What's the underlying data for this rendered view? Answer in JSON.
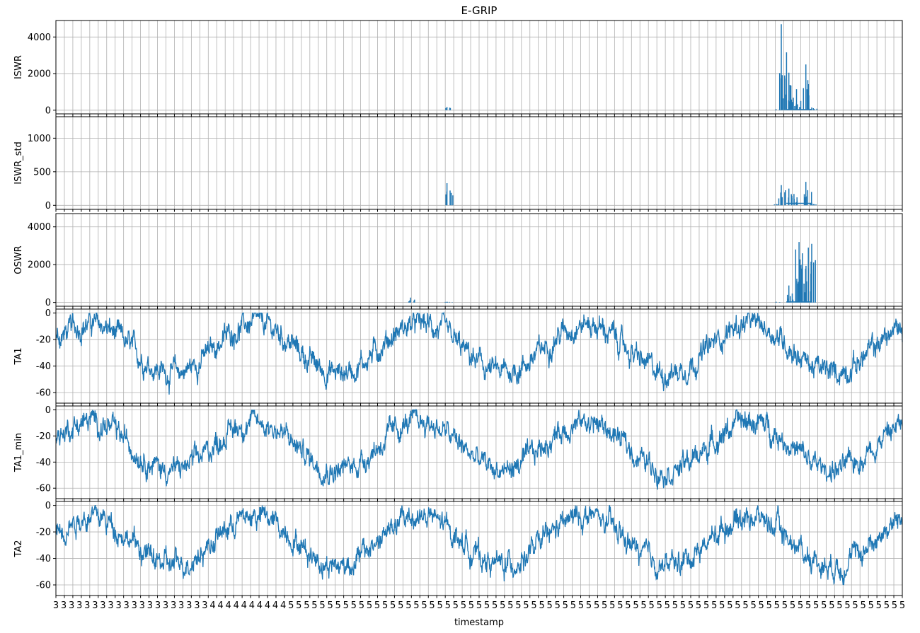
{
  "chart_data": {
    "type": "line",
    "title": "E-GRIP",
    "xlabel": "timestamp",
    "x_tick_labels_note": "dense overlapping date ticks",
    "x_tick_labels": [
      "3",
      "3",
      "3",
      "3",
      "3",
      "3",
      "3",
      "3",
      "3",
      "3",
      "3",
      "3",
      "3",
      "3",
      "3",
      "3",
      "3",
      "3",
      "3",
      "3",
      "4",
      "4",
      "4",
      "4",
      "4",
      "4",
      "4",
      "4",
      "4",
      "4",
      "5",
      "5",
      "5",
      "5",
      "5",
      "5",
      "5",
      "5",
      "5",
      "5",
      "5",
      "5",
      "5",
      "5",
      "5",
      "5",
      "5",
      "5",
      "5",
      "5",
      "5",
      "5",
      "5",
      "5",
      "5",
      "5",
      "5",
      "5",
      "5",
      "5",
      "5",
      "5",
      "5",
      "5",
      "5",
      "5",
      "5",
      "5",
      "5",
      "5",
      "5",
      "5",
      "5",
      "5",
      "5",
      "5",
      "5",
      "5",
      "5",
      "5",
      "5",
      "5",
      "5",
      "5",
      "5",
      "5",
      "5",
      "5",
      "5",
      "5",
      "5",
      "5",
      "5",
      "5",
      "5",
      "5",
      "5",
      "5",
      "5",
      "5",
      "5",
      "5",
      "5",
      "5",
      "5",
      "5",
      "5",
      "5",
      "5"
    ],
    "grid": true,
    "color": "#1f77b4",
    "panels": [
      {
        "ylabel": "ISWR",
        "ylim": [
          -200,
          4900
        ],
        "yticks": [
          0,
          2000,
          4000
        ],
        "events": [
          {
            "x": 0.462,
            "y": 180
          },
          {
            "x": 0.851,
            "y": 50
          },
          {
            "x": 0.857,
            "y": 4700
          },
          {
            "x": 0.861,
            "y": 1900
          },
          {
            "x": 0.866,
            "y": 2050
          },
          {
            "x": 0.869,
            "y": 580
          },
          {
            "x": 0.875,
            "y": 1150
          },
          {
            "x": 0.886,
            "y": 2500
          },
          {
            "x": 0.893,
            "y": 150
          }
        ]
      },
      {
        "ylabel": "ISWR_std",
        "ylim": [
          -60,
          1320
        ],
        "yticks": [
          0,
          500,
          1000
        ],
        "events": [
          {
            "x": 0.462,
            "y": 330
          },
          {
            "x": 0.851,
            "y": 20
          },
          {
            "x": 0.857,
            "y": 300
          },
          {
            "x": 0.866,
            "y": 250
          },
          {
            "x": 0.872,
            "y": 170
          },
          {
            "x": 0.886,
            "y": 350
          },
          {
            "x": 0.893,
            "y": 40
          }
        ]
      },
      {
        "ylabel": "OSWR",
        "ylim": [
          -200,
          4700
        ],
        "yticks": [
          0,
          2000,
          4000
        ],
        "events": [
          {
            "x": 0.419,
            "y": 260
          },
          {
            "x": 0.462,
            "y": 40
          },
          {
            "x": 0.851,
            "y": 40
          },
          {
            "x": 0.866,
            "y": 900
          },
          {
            "x": 0.874,
            "y": 2800
          },
          {
            "x": 0.878,
            "y": 3200
          },
          {
            "x": 0.882,
            "y": 2600
          },
          {
            "x": 0.889,
            "y": 2900
          },
          {
            "x": 0.893,
            "y": 3100
          }
        ]
      },
      {
        "ylabel": "TA1",
        "ylim": [
          -68,
          3
        ],
        "yticks": [
          -60,
          -40,
          -20,
          0
        ],
        "season": {
          "summer_peaks": [
            0.04,
            0.235,
            0.43,
            0.625,
            0.82,
            1.0
          ],
          "summer_level": -8,
          "winter_level": -45,
          "noise": 8
        }
      },
      {
        "ylabel": "TA1_min",
        "ylim": [
          -68,
          3
        ],
        "yticks": [
          -60,
          -40,
          -20,
          0
        ],
        "season": {
          "summer_peaks": [
            0.04,
            0.235,
            0.43,
            0.625,
            0.82,
            1.0
          ],
          "summer_level": -9,
          "winter_level": -46,
          "noise": 8
        }
      },
      {
        "ylabel": "TA2",
        "ylim": [
          -68,
          3
        ],
        "yticks": [
          -60,
          -40,
          -20,
          0
        ],
        "season": {
          "summer_peaks": [
            0.04,
            0.235,
            0.43,
            0.625,
            0.82,
            1.0
          ],
          "summer_level": -8,
          "winter_level": -45,
          "noise": 8
        }
      }
    ]
  }
}
